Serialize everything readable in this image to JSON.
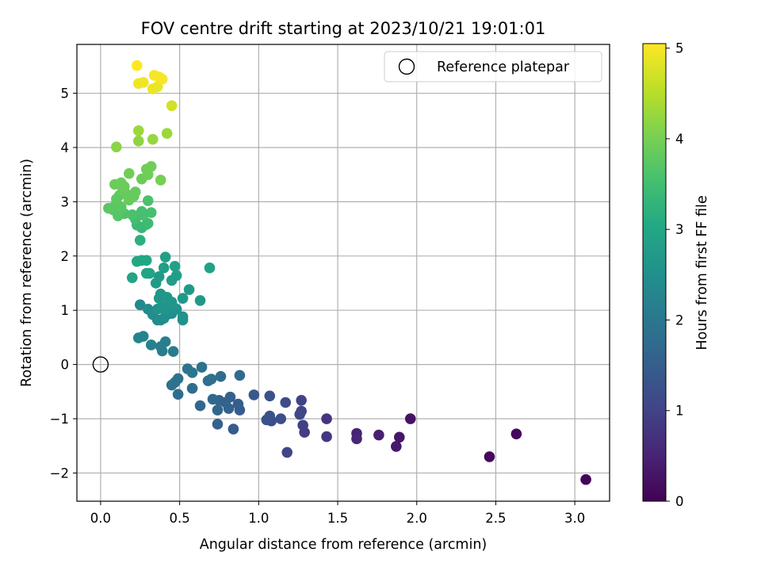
{
  "chart_data": {
    "type": "scatter",
    "title": "FOV centre drift starting at 2023/10/21 19:01:01",
    "xlabel": "Angular distance from reference (arcmin)",
    "ylabel": "Rotation from reference (arcmin)",
    "xlim": [
      -0.15,
      3.22
    ],
    "ylim": [
      -2.52,
      5.9
    ],
    "xticks": [
      "0.0",
      "0.5",
      "1.0",
      "1.5",
      "2.0",
      "2.5",
      "3.0"
    ],
    "yticks": [
      "−2",
      "−1",
      "0",
      "1",
      "2",
      "3",
      "4",
      "5"
    ],
    "grid": true,
    "legend": {
      "placement": "top-right",
      "entries": [
        "Reference platepar"
      ]
    },
    "reference_point": {
      "x": 0.0,
      "y": 0.0,
      "label": "Reference platepar"
    },
    "colorbar": {
      "label": "Hours from first FF file",
      "colormap": "viridis",
      "range": [
        0,
        5.05
      ],
      "ticks": [
        "0",
        "1",
        "2",
        "3",
        "4",
        "5"
      ]
    },
    "points": [
      {
        "x": 3.07,
        "y": -2.12,
        "h": 0.05
      },
      {
        "x": 2.46,
        "y": -1.7,
        "h": 0.1
      },
      {
        "x": 2.63,
        "y": -1.28,
        "h": 0.12
      },
      {
        "x": 1.96,
        "y": -1.0,
        "h": 0.25
      },
      {
        "x": 1.89,
        "y": -1.34,
        "h": 0.3
      },
      {
        "x": 1.87,
        "y": -1.51,
        "h": 0.35
      },
      {
        "x": 1.76,
        "y": -1.3,
        "h": 0.45
      },
      {
        "x": 1.62,
        "y": -1.27,
        "h": 0.5
      },
      {
        "x": 1.62,
        "y": -1.37,
        "h": 0.55
      },
      {
        "x": 1.43,
        "y": -1.0,
        "h": 0.75
      },
      {
        "x": 1.43,
        "y": -1.33,
        "h": 0.8
      },
      {
        "x": 1.29,
        "y": -1.25,
        "h": 0.9
      },
      {
        "x": 1.28,
        "y": -1.12,
        "h": 0.95
      },
      {
        "x": 1.27,
        "y": -0.66,
        "h": 1.0
      },
      {
        "x": 1.27,
        "y": -0.86,
        "h": 1.05
      },
      {
        "x": 1.26,
        "y": -0.92,
        "h": 1.1
      },
      {
        "x": 1.18,
        "y": -1.62,
        "h": 1.05
      },
      {
        "x": 1.17,
        "y": -0.7,
        "h": 1.15
      },
      {
        "x": 1.14,
        "y": -1.0,
        "h": 1.2
      },
      {
        "x": 1.08,
        "y": -1.04,
        "h": 1.2
      },
      {
        "x": 1.07,
        "y": -0.95,
        "h": 1.25
      },
      {
        "x": 1.05,
        "y": -1.02,
        "h": 1.25
      },
      {
        "x": 1.07,
        "y": -0.58,
        "h": 1.3
      },
      {
        "x": 0.97,
        "y": -0.56,
        "h": 1.4
      },
      {
        "x": 0.88,
        "y": -0.84,
        "h": 1.45
      },
      {
        "x": 0.87,
        "y": -0.73,
        "h": 1.5
      },
      {
        "x": 0.84,
        "y": -1.19,
        "h": 1.45
      },
      {
        "x": 0.82,
        "y": -0.6,
        "h": 1.55
      },
      {
        "x": 0.81,
        "y": -0.81,
        "h": 1.55
      },
      {
        "x": 0.79,
        "y": -0.7,
        "h": 1.6
      },
      {
        "x": 0.75,
        "y": -0.66,
        "h": 1.6
      },
      {
        "x": 0.74,
        "y": -0.84,
        "h": 1.65
      },
      {
        "x": 0.74,
        "y": -1.1,
        "h": 1.55
      },
      {
        "x": 0.71,
        "y": -0.64,
        "h": 1.7
      },
      {
        "x": 0.88,
        "y": -0.2,
        "h": 1.75
      },
      {
        "x": 0.76,
        "y": -0.22,
        "h": 1.8
      },
      {
        "x": 0.7,
        "y": -0.27,
        "h": 1.85
      },
      {
        "x": 0.68,
        "y": -0.3,
        "h": 1.85
      },
      {
        "x": 0.64,
        "y": -0.05,
        "h": 1.9
      },
      {
        "x": 0.63,
        "y": -0.76,
        "h": 1.7
      },
      {
        "x": 0.58,
        "y": -0.15,
        "h": 1.95
      },
      {
        "x": 0.55,
        "y": -0.08,
        "h": 1.95
      },
      {
        "x": 0.58,
        "y": -0.44,
        "h": 1.8
      },
      {
        "x": 0.49,
        "y": -0.26,
        "h": 1.9
      },
      {
        "x": 0.47,
        "y": -0.33,
        "h": 1.9
      },
      {
        "x": 0.45,
        "y": -0.38,
        "h": 1.9
      },
      {
        "x": 0.49,
        "y": -0.55,
        "h": 1.8
      },
      {
        "x": 0.46,
        "y": 0.24,
        "h": 2.1
      },
      {
        "x": 0.38,
        "y": 0.33,
        "h": 2.15
      },
      {
        "x": 0.41,
        "y": 0.42,
        "h": 2.15
      },
      {
        "x": 0.39,
        "y": 0.25,
        "h": 2.15
      },
      {
        "x": 0.32,
        "y": 0.36,
        "h": 2.2
      },
      {
        "x": 0.27,
        "y": 0.52,
        "h": 2.25
      },
      {
        "x": 0.24,
        "y": 0.49,
        "h": 2.25
      },
      {
        "x": 0.25,
        "y": 1.1,
        "h": 2.35
      },
      {
        "x": 0.3,
        "y": 1.02,
        "h": 2.4
      },
      {
        "x": 0.33,
        "y": 0.92,
        "h": 2.45
      },
      {
        "x": 0.36,
        "y": 0.82,
        "h": 2.45
      },
      {
        "x": 0.38,
        "y": 0.82,
        "h": 2.45
      },
      {
        "x": 0.4,
        "y": 0.85,
        "h": 2.45
      },
      {
        "x": 0.42,
        "y": 0.92,
        "h": 2.5
      },
      {
        "x": 0.45,
        "y": 0.94,
        "h": 2.5
      },
      {
        "x": 0.48,
        "y": 1.02,
        "h": 2.5
      },
      {
        "x": 0.52,
        "y": 0.82,
        "h": 2.55
      },
      {
        "x": 0.52,
        "y": 0.88,
        "h": 2.55
      },
      {
        "x": 0.36,
        "y": 1.02,
        "h": 2.55
      },
      {
        "x": 0.39,
        "y": 1.06,
        "h": 2.6
      },
      {
        "x": 0.41,
        "y": 1.0,
        "h": 2.6
      },
      {
        "x": 0.43,
        "y": 1.1,
        "h": 2.6
      },
      {
        "x": 0.46,
        "y": 1.06,
        "h": 2.6
      },
      {
        "x": 0.37,
        "y": 1.22,
        "h": 2.65
      },
      {
        "x": 0.38,
        "y": 1.3,
        "h": 2.65
      },
      {
        "x": 0.42,
        "y": 1.24,
        "h": 2.65
      },
      {
        "x": 0.45,
        "y": 1.15,
        "h": 2.65
      },
      {
        "x": 0.52,
        "y": 1.22,
        "h": 2.7
      },
      {
        "x": 0.56,
        "y": 1.38,
        "h": 2.7
      },
      {
        "x": 0.63,
        "y": 1.18,
        "h": 2.7
      },
      {
        "x": 0.35,
        "y": 1.5,
        "h": 2.75
      },
      {
        "x": 0.37,
        "y": 1.62,
        "h": 2.75
      },
      {
        "x": 0.4,
        "y": 1.78,
        "h": 2.8
      },
      {
        "x": 0.45,
        "y": 1.55,
        "h": 2.8
      },
      {
        "x": 0.48,
        "y": 1.64,
        "h": 2.8
      },
      {
        "x": 0.47,
        "y": 1.81,
        "h": 2.85
      },
      {
        "x": 0.41,
        "y": 1.98,
        "h": 2.85
      },
      {
        "x": 0.69,
        "y": 1.78,
        "h": 2.9
      },
      {
        "x": 0.2,
        "y": 1.6,
        "h": 2.95
      },
      {
        "x": 0.29,
        "y": 1.68,
        "h": 2.95
      },
      {
        "x": 0.31,
        "y": 1.68,
        "h": 2.95
      },
      {
        "x": 0.23,
        "y": 1.9,
        "h": 3.0
      },
      {
        "x": 0.26,
        "y": 1.92,
        "h": 3.0
      },
      {
        "x": 0.29,
        "y": 1.92,
        "h": 3.0
      },
      {
        "x": 0.25,
        "y": 2.29,
        "h": 3.2
      },
      {
        "x": 0.26,
        "y": 2.52,
        "h": 3.35
      },
      {
        "x": 0.23,
        "y": 2.57,
        "h": 3.4
      },
      {
        "x": 0.29,
        "y": 2.58,
        "h": 3.4
      },
      {
        "x": 0.3,
        "y": 2.6,
        "h": 3.45
      },
      {
        "x": 0.22,
        "y": 2.68,
        "h": 3.5
      },
      {
        "x": 0.27,
        "y": 2.75,
        "h": 3.55
      },
      {
        "x": 0.26,
        "y": 2.82,
        "h": 3.55
      },
      {
        "x": 0.32,
        "y": 2.8,
        "h": 3.55
      },
      {
        "x": 0.3,
        "y": 3.02,
        "h": 3.6
      },
      {
        "x": 0.2,
        "y": 2.76,
        "h": 3.6
      },
      {
        "x": 0.15,
        "y": 2.78,
        "h": 3.65
      },
      {
        "x": 0.11,
        "y": 2.74,
        "h": 3.7
      },
      {
        "x": 0.08,
        "y": 2.85,
        "h": 3.7
      },
      {
        "x": 0.05,
        "y": 2.88,
        "h": 3.75
      },
      {
        "x": 0.09,
        "y": 2.92,
        "h": 3.75
      },
      {
        "x": 0.13,
        "y": 2.9,
        "h": 3.75
      },
      {
        "x": 0.1,
        "y": 3.05,
        "h": 3.8
      },
      {
        "x": 0.12,
        "y": 3.12,
        "h": 3.8
      },
      {
        "x": 0.16,
        "y": 3.15,
        "h": 3.85
      },
      {
        "x": 0.14,
        "y": 3.2,
        "h": 3.85
      },
      {
        "x": 0.18,
        "y": 3.03,
        "h": 3.85
      },
      {
        "x": 0.22,
        "y": 3.18,
        "h": 3.85
      },
      {
        "x": 0.21,
        "y": 3.1,
        "h": 3.85
      },
      {
        "x": 0.09,
        "y": 3.32,
        "h": 3.9
      },
      {
        "x": 0.13,
        "y": 3.35,
        "h": 3.9
      },
      {
        "x": 0.15,
        "y": 3.28,
        "h": 3.9
      },
      {
        "x": 0.26,
        "y": 3.42,
        "h": 3.9
      },
      {
        "x": 0.29,
        "y": 3.6,
        "h": 3.95
      },
      {
        "x": 0.32,
        "y": 3.65,
        "h": 3.95
      },
      {
        "x": 0.3,
        "y": 3.5,
        "h": 3.95
      },
      {
        "x": 0.18,
        "y": 3.52,
        "h": 3.95
      },
      {
        "x": 0.38,
        "y": 3.4,
        "h": 4.0
      },
      {
        "x": 0.1,
        "y": 4.01,
        "h": 4.15
      },
      {
        "x": 0.24,
        "y": 4.12,
        "h": 4.2
      },
      {
        "x": 0.33,
        "y": 4.15,
        "h": 4.25
      },
      {
        "x": 0.24,
        "y": 4.31,
        "h": 4.3
      },
      {
        "x": 0.42,
        "y": 4.26,
        "h": 4.3
      },
      {
        "x": 0.45,
        "y": 4.77,
        "h": 4.7
      },
      {
        "x": 0.33,
        "y": 5.08,
        "h": 4.9
      },
      {
        "x": 0.36,
        "y": 5.12,
        "h": 4.9
      },
      {
        "x": 0.24,
        "y": 5.18,
        "h": 4.95
      },
      {
        "x": 0.27,
        "y": 5.2,
        "h": 4.95
      },
      {
        "x": 0.34,
        "y": 5.33,
        "h": 5.0
      },
      {
        "x": 0.37,
        "y": 5.3,
        "h": 5.0
      },
      {
        "x": 0.39,
        "y": 5.26,
        "h": 5.0
      },
      {
        "x": 0.23,
        "y": 5.51,
        "h": 5.05
      }
    ]
  }
}
